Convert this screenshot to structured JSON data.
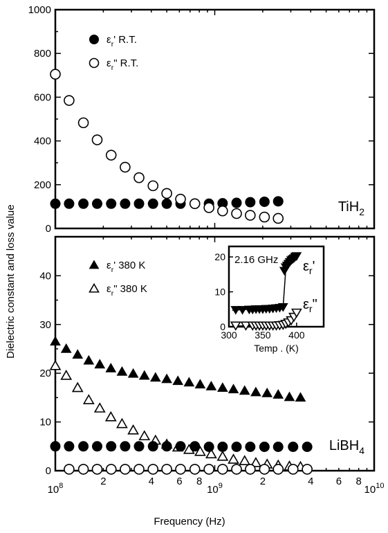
{
  "chart_data": [
    {
      "panel": "top",
      "type": "scatter",
      "xscale": "log",
      "xlim": [
        100000000.0,
        10000000000.0
      ],
      "ylim": [
        0,
        1000
      ],
      "yticks": [
        0,
        200,
        400,
        600,
        800,
        1000
      ],
      "sample_label": {
        "main": "TiH",
        "sub": "2"
      },
      "legend": [
        {
          "text": "εr' R.T.",
          "sym": "ε",
          "sub": "r",
          "rest": "' R.T.",
          "marker": "filled-circle"
        },
        {
          "text": "εr\" R.T.",
          "sym": "ε",
          "sub": "r",
          "rest": "\" R.T.",
          "marker": "open-circle"
        }
      ],
      "series": [
        {
          "name": "εr' R.T.",
          "marker": "filled-circle",
          "x": [
            100000000.0,
            122000000.0,
            150000000.0,
            183000000.0,
            224000000.0,
            274000000.0,
            335000000.0,
            410000000.0,
            500000000.0,
            610000000.0,
            750000000.0,
            920000000.0,
            1120000000.0,
            1370000000.0,
            1670000000.0,
            2050000000.0,
            2500000000.0
          ],
          "y": [
            113,
            113,
            113,
            113,
            113,
            113,
            113,
            113,
            113,
            113,
            113,
            113,
            115,
            117,
            120,
            122,
            124
          ]
        },
        {
          "name": "εr\" R.T.",
          "marker": "open-circle",
          "x": [
            100000000.0,
            122000000.0,
            150000000.0,
            183000000.0,
            224000000.0,
            274000000.0,
            335000000.0,
            410000000.0,
            500000000.0,
            610000000.0,
            750000000.0,
            920000000.0,
            1120000000.0,
            1370000000.0,
            1670000000.0,
            2050000000.0,
            2500000000.0
          ],
          "y": [
            705,
            585,
            483,
            405,
            335,
            280,
            232,
            195,
            160,
            134,
            113,
            95,
            80,
            68,
            60,
            52,
            46
          ]
        }
      ]
    },
    {
      "panel": "bottom",
      "type": "scatter",
      "xscale": "log",
      "xlim": [
        100000000.0,
        10000000000.0
      ],
      "ylim": [
        0,
        48
      ],
      "yticks": [
        0,
        10,
        20,
        30,
        40
      ],
      "sample_label": {
        "main": "LiBH",
        "sub": "4"
      },
      "legend": [
        {
          "text": "εr' 380 K",
          "sym": "ε",
          "sub": "r",
          "rest": "' 380 K",
          "marker": "filled-triangle"
        },
        {
          "text": "εr\" 380 K",
          "sym": "ε",
          "sub": "r",
          "rest": "\" 380 K",
          "marker": "open-triangle"
        }
      ],
      "series": [
        {
          "name": "εr' 380 K",
          "marker": "filled-triangle",
          "x": [
            100000000.0,
            117000000.0,
            138000000.0,
            162000000.0,
            190000000.0,
            223000000.0,
            262000000.0,
            308000000.0,
            362000000.0,
            425000000.0,
            500000000.0,
            587000000.0,
            690000000.0,
            810000000.0,
            950000000.0,
            1120000000.0,
            1310000000.0,
            1540000000.0,
            1810000000.0,
            2130000000.0,
            2500000000.0,
            2940000000.0,
            3450000000.0
          ],
          "y": [
            26.5,
            25.0,
            23.8,
            22.6,
            21.8,
            21.0,
            20.3,
            19.9,
            19.5,
            19.1,
            18.8,
            18.4,
            18.1,
            17.7,
            17.3,
            17.0,
            16.7,
            16.4,
            16.1,
            15.9,
            15.6,
            15.1,
            15.0
          ]
        },
        {
          "name": "εr\" 380 K",
          "marker": "open-triangle",
          "x": [
            100000000.0,
            117000000.0,
            138000000.0,
            162000000.0,
            190000000.0,
            223000000.0,
            262000000.0,
            308000000.0,
            362000000.0,
            425000000.0,
            500000000.0,
            587000000.0,
            690000000.0,
            810000000.0,
            950000000.0,
            1120000000.0,
            1310000000.0,
            1540000000.0,
            1810000000.0,
            2130000000.0,
            2500000000.0,
            2940000000.0,
            3450000000.0
          ],
          "y": [
            21.5,
            19.5,
            17.0,
            14.5,
            12.8,
            11.0,
            9.6,
            8.3,
            7.1,
            6.2,
            5.4,
            4.8,
            4.3,
            3.9,
            3.4,
            2.9,
            2.3,
            2.0,
            1.6,
            1.3,
            1.1,
            0.9,
            0.8
          ]
        },
        {
          "name": "TiH2 εr' (filled circle)",
          "marker": "filled-circle",
          "x": [
            100000000.0,
            122000000.0,
            150000000.0,
            183000000.0,
            224000000.0,
            274000000.0,
            335000000.0,
            410000000.0,
            500000000.0,
            610000000.0,
            750000000.0,
            920000000.0,
            1120000000.0,
            1370000000.0,
            1670000000.0,
            2050000000.0,
            2500000000.0,
            3100000000.0,
            3800000000.0
          ],
          "y": [
            5.0,
            5.0,
            5.0,
            5.0,
            5.0,
            5.0,
            5.0,
            5.0,
            5.0,
            5.0,
            5.0,
            4.9,
            4.9,
            4.9,
            4.9,
            4.9,
            4.9,
            4.9,
            4.9
          ]
        },
        {
          "name": "TiH2 εr\" (open circle)",
          "marker": "open-circle",
          "x": [
            122000000.0,
            150000000.0,
            183000000.0,
            224000000.0,
            274000000.0,
            335000000.0,
            410000000.0,
            500000000.0,
            610000000.0,
            750000000.0,
            920000000.0,
            1120000000.0,
            1370000000.0,
            1670000000.0,
            2050000000.0,
            2500000000.0,
            3100000000.0,
            3800000000.0
          ],
          "y": [
            0.3,
            0.3,
            0.3,
            0.3,
            0.3,
            0.3,
            0.3,
            0.3,
            0.3,
            0.3,
            0.3,
            0.3,
            0.3,
            0.3,
            0.3,
            0.3,
            0.3,
            0.3
          ]
        }
      ]
    },
    {
      "panel": "inset",
      "type": "scatter",
      "xlim": [
        300,
        440
      ],
      "ylim": [
        0,
        23
      ],
      "xticks": [
        300,
        350,
        400
      ],
      "yticks": [
        0,
        10,
        20
      ],
      "xlabel": "Temp . (K)",
      "annotation": "2.16 GHz",
      "curve_labels": [
        {
          "sym": "ε",
          "sub": "r",
          "rest": "'"
        },
        {
          "sym": "ε",
          "sub": "r",
          "rest": "\""
        }
      ],
      "series": [
        {
          "name": "εr'",
          "marker": "filled-down-triangle",
          "x": [
            310,
            320,
            330,
            335,
            340,
            345,
            350,
            355,
            360,
            365,
            370,
            375,
            380,
            382,
            384,
            386,
            388,
            390,
            392,
            394,
            396,
            398,
            400
          ],
          "y": [
            4.8,
            4.8,
            4.9,
            4.9,
            5.0,
            5.0,
            5.0,
            5.1,
            5.1,
            5.2,
            5.3,
            5.4,
            5.6,
            16.0,
            17.0,
            17.5,
            18.0,
            18.5,
            19.0,
            19.3,
            19.6,
            20.0,
            20.2
          ]
        },
        {
          "name": "εr\"",
          "marker": "open-down-triangle",
          "x": [
            310,
            325,
            335,
            340,
            345,
            350,
            355,
            360,
            365,
            370,
            375,
            380,
            384,
            388,
            392,
            396,
            400
          ],
          "y": [
            0.3,
            0.3,
            0.3,
            0.3,
            0.3,
            0.3,
            0.3,
            0.3,
            0.3,
            0.3,
            0.4,
            0.5,
            0.8,
            1.2,
            1.8,
            2.8,
            4.0
          ]
        }
      ],
      "fit_lines": [
        {
          "x": [
            305,
            380,
            384,
            402
          ],
          "y": [
            4.7,
            5.6,
            16.5,
            20.5
          ]
        },
        {
          "x": [
            305,
            378,
            390,
            400
          ],
          "y": [
            0.2,
            0.4,
            1.6,
            4.0
          ]
        }
      ]
    }
  ],
  "shared": {
    "xlabel": "Frequency (Hz)",
    "ylabel": "Dielectric constant and loss value",
    "xticks_major": [
      {
        "base": "10",
        "exp": "8",
        "value": 100000000.0
      },
      {
        "base": "10",
        "exp": "9",
        "value": 1000000000.0
      },
      {
        "base": "10",
        "exp": "10",
        "value": 10000000000.0
      }
    ],
    "xticks_minor_labels": [
      "2",
      "4",
      "6",
      "8",
      "2",
      "4",
      "6",
      "8"
    ],
    "xticks_minor_values": [
      200000000.0,
      400000000.0,
      600000000.0,
      800000000.0,
      2000000000.0,
      4000000000.0,
      6000000000.0,
      8000000000.0
    ]
  }
}
